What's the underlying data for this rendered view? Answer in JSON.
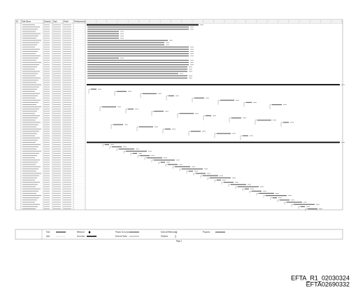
{
  "columns": [
    "ID",
    "Task Name",
    "Duration",
    "Start",
    "Finish",
    "Predecessors"
  ],
  "legend": [
    "Task",
    "Split",
    "Milestone",
    "Summary",
    "Project Summary",
    "External Tasks",
    "External Milestone",
    "Deadline",
    "Progress"
  ],
  "footer": {
    "page": "Page 1"
  },
  "doc_ids": [
    "EFTA_R1_02030324",
    "EFTA02690332"
  ]
}
